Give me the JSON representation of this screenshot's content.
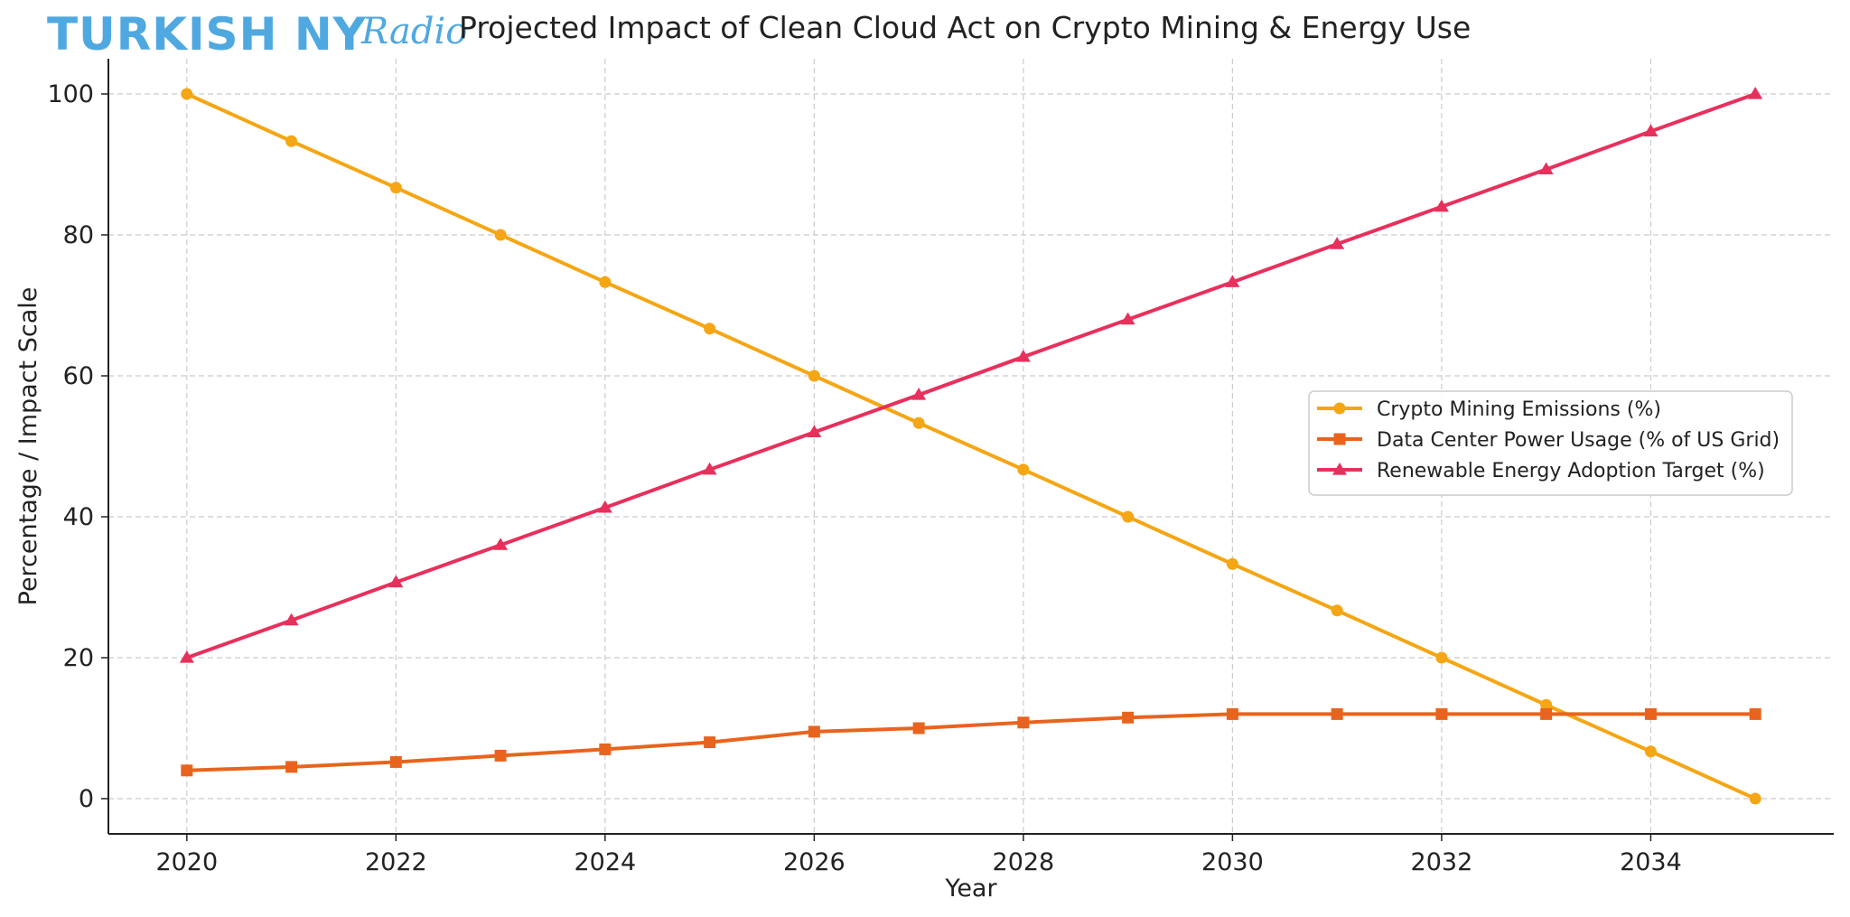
{
  "logo": {
    "main": "TURKISH NY",
    "script": "Radio"
  },
  "chart_data": {
    "type": "line",
    "title": "Projected Impact of Clean Cloud Act on Crypto Mining & Energy Use",
    "xlabel": "Year",
    "ylabel": "Percentage / Impact Scale",
    "xlim": [
      2019.25,
      2035.75
    ],
    "ylim": [
      -5,
      105
    ],
    "xticks": [
      2020,
      2022,
      2024,
      2026,
      2028,
      2030,
      2032,
      2034
    ],
    "yticks": [
      0,
      20,
      40,
      60,
      80,
      100
    ],
    "grid": true,
    "legend_position": "center-right",
    "x": [
      2020,
      2021,
      2022,
      2023,
      2024,
      2025,
      2026,
      2027,
      2028,
      2029,
      2030,
      2031,
      2032,
      2033,
      2034,
      2035
    ],
    "series": [
      {
        "name": "Crypto Mining Emissions (%)",
        "color": "#F5A614",
        "marker": "circle",
        "values": [
          100,
          93.3,
          86.7,
          80,
          73.3,
          66.7,
          60,
          53.3,
          46.7,
          40,
          33.3,
          26.7,
          20,
          13.3,
          6.7,
          0
        ]
      },
      {
        "name": "Data Center Power Usage (% of US Grid)",
        "color": "#E8641E",
        "marker": "square",
        "values": [
          4,
          4.5,
          5.2,
          6.1,
          7,
          8,
          9.5,
          10,
          10.8,
          11.5,
          12,
          12,
          12,
          12,
          12,
          12
        ]
      },
      {
        "name": "Renewable Energy Adoption Target (%)",
        "color": "#E8305C",
        "marker": "triangle",
        "values": [
          20,
          25.3,
          30.7,
          36,
          41.3,
          46.7,
          52,
          57.3,
          62.7,
          68,
          73.3,
          78.7,
          84,
          89.3,
          94.7,
          100
        ]
      }
    ]
  }
}
